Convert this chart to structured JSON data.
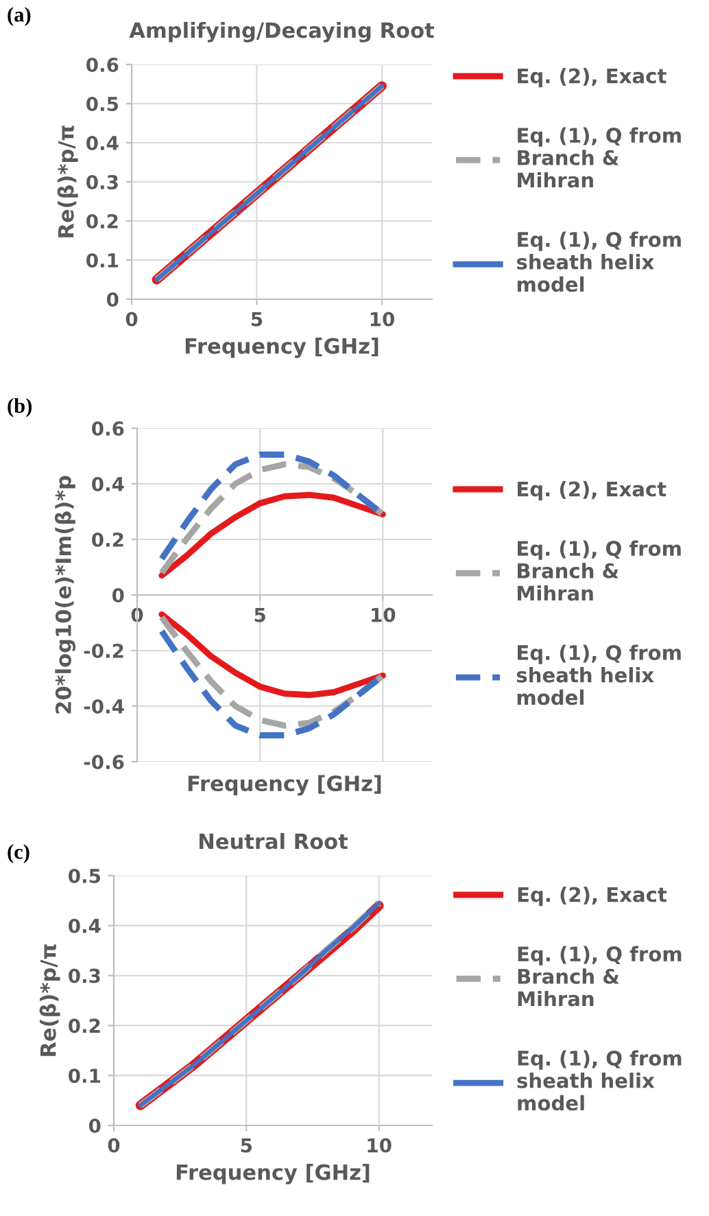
{
  "chart_data": [
    {
      "type": "line",
      "title": "Amplifying/Decaying Root",
      "xlabel": "Frequency [GHz]",
      "ylabel": "Re(β)*p/π",
      "annotations": [
        "(a)"
      ],
      "x": [
        1,
        2,
        3,
        4,
        5,
        6,
        7,
        8,
        9,
        10
      ],
      "series": [
        {
          "name": "Eq. (2), Exact",
          "color": "#e31a1c",
          "line_style": "solid",
          "values": [
            0.05,
            0.105,
            0.16,
            0.215,
            0.27,
            0.325,
            0.38,
            0.435,
            0.49,
            0.545
          ]
        },
        {
          "name": "Eq. (1), Q from\nBranch &\nMihran",
          "color": "#a6a6a6",
          "line_style": "dashed",
          "values": [
            0.05,
            0.105,
            0.16,
            0.215,
            0.27,
            0.325,
            0.38,
            0.435,
            0.49,
            0.545
          ]
        },
        {
          "name": "Eq. (1), Q from\nsheath helix\nmodel",
          "color": "#4472c4",
          "line_style": "solid",
          "values": [
            0.05,
            0.105,
            0.16,
            0.215,
            0.27,
            0.325,
            0.38,
            0.435,
            0.49,
            0.545
          ]
        }
      ],
      "xlim": [
        0,
        12
      ],
      "xticks": [
        0,
        5,
        10
      ],
      "ylim": [
        0,
        0.6
      ],
      "yticks": [
        0,
        0.1,
        0.2,
        0.3,
        0.4,
        0.5,
        0.6
      ],
      "grid": true,
      "legend": "right"
    },
    {
      "type": "line",
      "xlabel": "Frequency [GHz]",
      "ylabel": "20*log10(e)*Im(β)*p",
      "annotations": [
        "(b)"
      ],
      "x": [
        1,
        2,
        3,
        4,
        5,
        6,
        7,
        8,
        9,
        10
      ],
      "series": [
        {
          "name": "Eq. (2), Exact",
          "color": "#e31a1c",
          "line_style": "solid",
          "values": [
            0.07,
            0.14,
            0.22,
            0.28,
            0.33,
            0.355,
            0.36,
            0.35,
            0.32,
            0.29
          ]
        },
        {
          "color": "#e31a1c",
          "line_style": "solid",
          "values": [
            -0.07,
            -0.14,
            -0.22,
            -0.28,
            -0.33,
            -0.355,
            -0.36,
            -0.35,
            -0.32,
            -0.29
          ]
        },
        {
          "name": "Eq. (1), Q from\nBranch &\nMihran",
          "color": "#a6a6a6",
          "line_style": "dashed",
          "values": [
            0.08,
            0.2,
            0.31,
            0.4,
            0.45,
            0.47,
            0.46,
            0.42,
            0.36,
            0.29
          ]
        },
        {
          "color": "#a6a6a6",
          "line_style": "dashed",
          "values": [
            -0.08,
            -0.2,
            -0.31,
            -0.4,
            -0.45,
            -0.47,
            -0.46,
            -0.42,
            -0.36,
            -0.29
          ]
        },
        {
          "name": "Eq. (1), Q from\nsheath helix\nmodel",
          "color": "#4472c4",
          "line_style": "dashed",
          "values": [
            0.13,
            0.26,
            0.38,
            0.47,
            0.505,
            0.505,
            0.48,
            0.43,
            0.36,
            0.29
          ]
        },
        {
          "color": "#4472c4",
          "line_style": "dashed",
          "values": [
            -0.13,
            -0.26,
            -0.38,
            -0.47,
            -0.505,
            -0.505,
            -0.48,
            -0.43,
            -0.36,
            -0.29
          ]
        }
      ],
      "xlim": [
        0,
        12
      ],
      "xticks": [
        0,
        5,
        10
      ],
      "ylim": [
        -0.6,
        0.6
      ],
      "yticks": [
        -0.6,
        -0.4,
        -0.2,
        0,
        0.2,
        0.4,
        0.6
      ],
      "grid": true,
      "legend": "right"
    },
    {
      "type": "line",
      "title": "Neutral Root",
      "xlabel": "Frequency [GHz]",
      "ylabel": "Re(β)*p/π",
      "annotations": [
        "(c)"
      ],
      "x": [
        1,
        2,
        3,
        4,
        5,
        6,
        7,
        8,
        9,
        10
      ],
      "series": [
        {
          "name": "Eq. (2), Exact",
          "color": "#e31a1c",
          "line_style": "solid",
          "values": [
            0.04,
            0.08,
            0.12,
            0.165,
            0.21,
            0.255,
            0.3,
            0.345,
            0.39,
            0.44
          ]
        },
        {
          "name": "Eq. (1), Q from\nBranch &\nMihran",
          "color": "#a6a6a6",
          "line_style": "dashed",
          "values": [
            0.04,
            0.08,
            0.12,
            0.165,
            0.21,
            0.255,
            0.3,
            0.35,
            0.395,
            0.445
          ]
        },
        {
          "name": "Eq. (1), Q from\nsheath helix\nmodel",
          "color": "#4472c4",
          "line_style": "solid",
          "values": [
            0.04,
            0.08,
            0.12,
            0.165,
            0.21,
            0.255,
            0.3,
            0.35,
            0.395,
            0.445
          ]
        }
      ],
      "xlim": [
        0,
        12
      ],
      "xticks": [
        0,
        5,
        10
      ],
      "ylim": [
        0,
        0.5
      ],
      "yticks": [
        0,
        0.1,
        0.2,
        0.3,
        0.4,
        0.5
      ],
      "grid": true,
      "legend": "right"
    }
  ]
}
